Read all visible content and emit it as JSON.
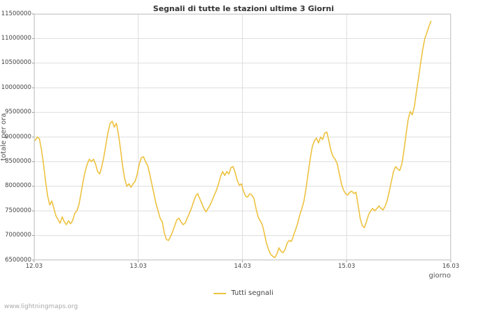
{
  "page": {
    "footer": "www.lightningmaps.org"
  },
  "chart_data": {
    "type": "line",
    "title": "Segnali di tutte le stazioni ultime 3 Giorni",
    "xlabel": "giorno",
    "ylabel": "totale per ora",
    "grid": true,
    "legend_position": "bottom-center",
    "grid_color": "#dddddd",
    "border_color": "#cccccc",
    "xlim": [
      12.03,
      16.03
    ],
    "ylim": [
      6.5,
      11.5
    ],
    "y_unit": "millions",
    "x_ticks": [
      {
        "value": 12.03,
        "label": "12.03"
      },
      {
        "value": 13.03,
        "label": "13.03"
      },
      {
        "value": 14.03,
        "label": "14.03"
      },
      {
        "value": 15.03,
        "label": "15.03"
      },
      {
        "value": 16.03,
        "label": "16.03"
      }
    ],
    "y_ticks": [
      {
        "value": 6.5,
        "label": "6500000"
      },
      {
        "value": 7.0,
        "label": "7000000"
      },
      {
        "value": 7.5,
        "label": "7500000"
      },
      {
        "value": 8.0,
        "label": "8000000"
      },
      {
        "value": 8.5,
        "label": "8500000"
      },
      {
        "value": 9.0,
        "label": "9000000"
      },
      {
        "value": 9.5,
        "label": "9500000"
      },
      {
        "value": 10.0,
        "label": "10000000"
      },
      {
        "value": 10.5,
        "label": "10500000"
      },
      {
        "value": 11.0,
        "label": "11000000"
      },
      {
        "value": 11.5,
        "label": "11500000"
      }
    ],
    "series": [
      {
        "name": "Tutti segnali",
        "color": "#edc240",
        "points": [
          [
            12.04,
            8.93
          ],
          [
            12.06,
            9.0
          ],
          [
            12.08,
            8.97
          ],
          [
            12.1,
            8.75
          ],
          [
            12.12,
            8.45
          ],
          [
            12.14,
            8.1
          ],
          [
            12.16,
            7.8
          ],
          [
            12.18,
            7.62
          ],
          [
            12.2,
            7.7
          ],
          [
            12.22,
            7.55
          ],
          [
            12.24,
            7.4
          ],
          [
            12.26,
            7.32
          ],
          [
            12.28,
            7.25
          ],
          [
            12.3,
            7.38
          ],
          [
            12.32,
            7.28
          ],
          [
            12.34,
            7.22
          ],
          [
            12.36,
            7.3
          ],
          [
            12.38,
            7.24
          ],
          [
            12.4,
            7.3
          ],
          [
            12.42,
            7.45
          ],
          [
            12.44,
            7.5
          ],
          [
            12.46,
            7.62
          ],
          [
            12.48,
            7.85
          ],
          [
            12.5,
            8.1
          ],
          [
            12.52,
            8.3
          ],
          [
            12.54,
            8.45
          ],
          [
            12.56,
            8.55
          ],
          [
            12.58,
            8.5
          ],
          [
            12.6,
            8.55
          ],
          [
            12.62,
            8.45
          ],
          [
            12.64,
            8.3
          ],
          [
            12.66,
            8.25
          ],
          [
            12.68,
            8.4
          ],
          [
            12.7,
            8.6
          ],
          [
            12.72,
            8.85
          ],
          [
            12.74,
            9.1
          ],
          [
            12.76,
            9.28
          ],
          [
            12.78,
            9.32
          ],
          [
            12.8,
            9.2
          ],
          [
            12.82,
            9.28
          ],
          [
            12.84,
            9.05
          ],
          [
            12.86,
            8.75
          ],
          [
            12.88,
            8.4
          ],
          [
            12.9,
            8.15
          ],
          [
            12.92,
            8.0
          ],
          [
            12.94,
            8.05
          ],
          [
            12.96,
            7.98
          ],
          [
            12.98,
            8.05
          ],
          [
            13.0,
            8.1
          ],
          [
            13.02,
            8.25
          ],
          [
            13.04,
            8.45
          ],
          [
            13.06,
            8.58
          ],
          [
            13.08,
            8.6
          ],
          [
            13.1,
            8.5
          ],
          [
            13.12,
            8.42
          ],
          [
            13.14,
            8.25
          ],
          [
            13.16,
            8.05
          ],
          [
            13.18,
            7.85
          ],
          [
            13.2,
            7.65
          ],
          [
            13.22,
            7.5
          ],
          [
            13.24,
            7.35
          ],
          [
            13.26,
            7.28
          ],
          [
            13.28,
            7.05
          ],
          [
            13.3,
            6.92
          ],
          [
            13.32,
            6.9
          ],
          [
            13.34,
            6.98
          ],
          [
            13.36,
            7.08
          ],
          [
            13.38,
            7.2
          ],
          [
            13.4,
            7.32
          ],
          [
            13.42,
            7.35
          ],
          [
            13.44,
            7.28
          ],
          [
            13.46,
            7.22
          ],
          [
            13.48,
            7.25
          ],
          [
            13.5,
            7.35
          ],
          [
            13.52,
            7.45
          ],
          [
            13.54,
            7.55
          ],
          [
            13.56,
            7.68
          ],
          [
            13.58,
            7.8
          ],
          [
            13.6,
            7.85
          ],
          [
            13.62,
            7.75
          ],
          [
            13.64,
            7.65
          ],
          [
            13.66,
            7.55
          ],
          [
            13.68,
            7.48
          ],
          [
            13.7,
            7.55
          ],
          [
            13.72,
            7.62
          ],
          [
            13.74,
            7.72
          ],
          [
            13.76,
            7.82
          ],
          [
            13.78,
            7.92
          ],
          [
            13.8,
            8.05
          ],
          [
            13.82,
            8.2
          ],
          [
            13.84,
            8.3
          ],
          [
            13.86,
            8.22
          ],
          [
            13.88,
            8.3
          ],
          [
            13.9,
            8.25
          ],
          [
            13.92,
            8.38
          ],
          [
            13.94,
            8.4
          ],
          [
            13.96,
            8.28
          ],
          [
            13.98,
            8.12
          ],
          [
            14.0,
            8.02
          ],
          [
            14.02,
            8.05
          ],
          [
            14.04,
            7.9
          ],
          [
            14.06,
            7.8
          ],
          [
            14.08,
            7.78
          ],
          [
            14.1,
            7.85
          ],
          [
            14.12,
            7.82
          ],
          [
            14.14,
            7.75
          ],
          [
            14.16,
            7.55
          ],
          [
            14.18,
            7.38
          ],
          [
            14.2,
            7.3
          ],
          [
            14.22,
            7.22
          ],
          [
            14.24,
            7.05
          ],
          [
            14.26,
            6.85
          ],
          [
            14.28,
            6.72
          ],
          [
            14.3,
            6.62
          ],
          [
            14.32,
            6.58
          ],
          [
            14.34,
            6.55
          ],
          [
            14.36,
            6.62
          ],
          [
            14.38,
            6.75
          ],
          [
            14.4,
            6.68
          ],
          [
            14.42,
            6.65
          ],
          [
            14.44,
            6.72
          ],
          [
            14.46,
            6.85
          ],
          [
            14.48,
            6.9
          ],
          [
            14.5,
            6.88
          ],
          [
            14.52,
            7.0
          ],
          [
            14.54,
            7.12
          ],
          [
            14.56,
            7.25
          ],
          [
            14.58,
            7.42
          ],
          [
            14.6,
            7.55
          ],
          [
            14.62,
            7.7
          ],
          [
            14.64,
            7.95
          ],
          [
            14.66,
            8.25
          ],
          [
            14.68,
            8.55
          ],
          [
            14.7,
            8.8
          ],
          [
            14.72,
            8.92
          ],
          [
            14.74,
            8.98
          ],
          [
            14.76,
            8.88
          ],
          [
            14.78,
            9.0
          ],
          [
            14.8,
            8.95
          ],
          [
            14.82,
            9.08
          ],
          [
            14.84,
            9.1
          ],
          [
            14.86,
            8.92
          ],
          [
            14.88,
            8.72
          ],
          [
            14.9,
            8.6
          ],
          [
            14.92,
            8.55
          ],
          [
            14.94,
            8.45
          ],
          [
            14.96,
            8.25
          ],
          [
            14.98,
            8.05
          ],
          [
            15.0,
            7.92
          ],
          [
            15.02,
            7.85
          ],
          [
            15.04,
            7.82
          ],
          [
            15.06,
            7.88
          ],
          [
            15.08,
            7.9
          ],
          [
            15.1,
            7.85
          ],
          [
            15.12,
            7.88
          ],
          [
            15.14,
            7.62
          ],
          [
            15.16,
            7.35
          ],
          [
            15.18,
            7.2
          ],
          [
            15.2,
            7.16
          ],
          [
            15.22,
            7.28
          ],
          [
            15.24,
            7.42
          ],
          [
            15.26,
            7.5
          ],
          [
            15.28,
            7.55
          ],
          [
            15.3,
            7.5
          ],
          [
            15.32,
            7.55
          ],
          [
            15.34,
            7.6
          ],
          [
            15.36,
            7.55
          ],
          [
            15.38,
            7.52
          ],
          [
            15.4,
            7.6
          ],
          [
            15.42,
            7.72
          ],
          [
            15.44,
            7.9
          ],
          [
            15.46,
            8.1
          ],
          [
            15.48,
            8.3
          ],
          [
            15.5,
            8.4
          ],
          [
            15.52,
            8.35
          ],
          [
            15.54,
            8.32
          ],
          [
            15.56,
            8.45
          ],
          [
            15.58,
            8.72
          ],
          [
            15.6,
            9.05
          ],
          [
            15.62,
            9.35
          ],
          [
            15.64,
            9.52
          ],
          [
            15.66,
            9.45
          ],
          [
            15.68,
            9.62
          ],
          [
            15.7,
            9.92
          ],
          [
            15.72,
            10.2
          ],
          [
            15.74,
            10.5
          ],
          [
            15.76,
            10.78
          ],
          [
            15.78,
            11.0
          ],
          [
            15.8,
            11.12
          ],
          [
            15.82,
            11.25
          ],
          [
            15.84,
            11.35
          ]
        ]
      }
    ]
  }
}
